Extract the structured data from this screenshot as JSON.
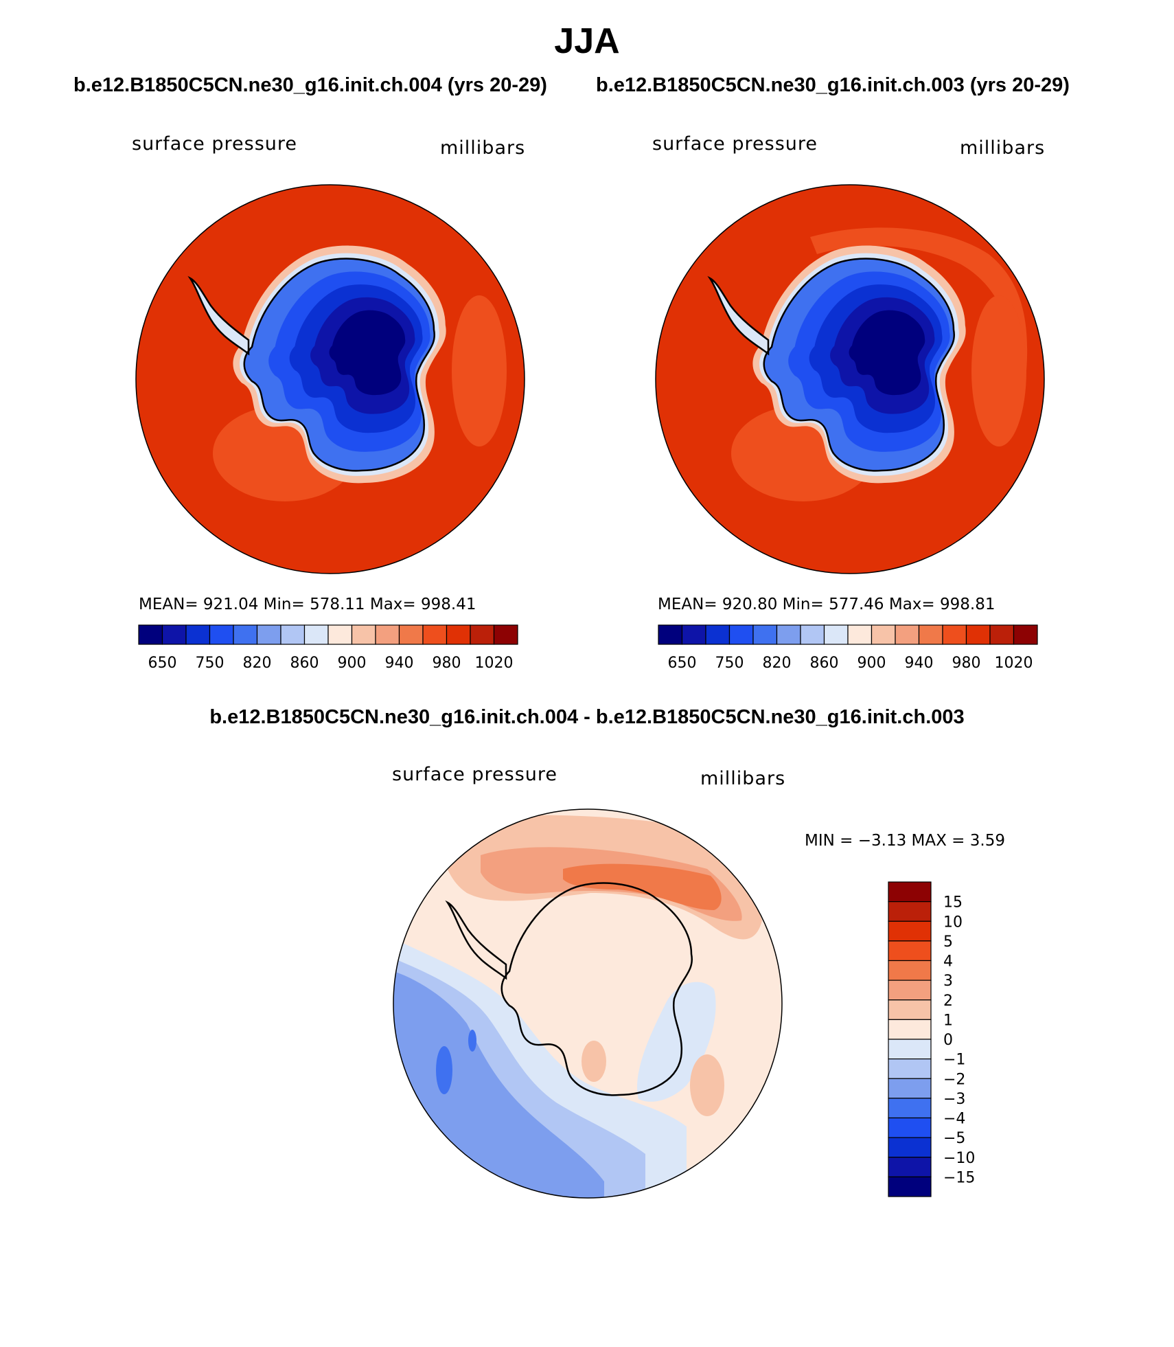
{
  "figure": {
    "title": "JJA",
    "top_left_case": "b.e12.B1850C5CN.ne30_g16.init.ch.004 (yrs 20-29)",
    "top_right_case": "b.e12.B1850C5CN.ne30_g16.init.ch.003 (yrs 20-29)",
    "diff_title": "b.e12.B1850C5CN.ne30_g16.init.ch.004 - b.e12.B1850C5CN.ne30_g16.init.ch.003"
  },
  "panels": [
    {
      "variable": "surface pressure",
      "units": "millibars",
      "stats": "MEAN= 921.04   Min= 578.11   Max= 998.41",
      "mean": 921.04,
      "min": 578.11,
      "max": 998.41
    },
    {
      "variable": "surface pressure",
      "units": "millibars",
      "stats": "MEAN= 920.80   Min= 577.46   Max= 998.81",
      "mean": 920.8,
      "min": 577.46,
      "max": 998.81
    },
    {
      "variable": "surface pressure",
      "units": "millibars",
      "stats": "MIN =   −3.13 MAX =    3.59",
      "min": -3.13,
      "max": 3.59
    }
  ],
  "abs_colorbar": {
    "colors": [
      "#00007d",
      "#0e14a8",
      "#0b31d2",
      "#1f4ff1",
      "#3f71f0",
      "#7d9eee",
      "#b1c6f4",
      "#dbe7f8",
      "#fde9dc",
      "#f7c3a8",
      "#f3a07f",
      "#f07949",
      "#ee4f1d",
      "#e03105",
      "#bb2009",
      "#8d0203"
    ],
    "labels": [
      "650",
      "750",
      "820",
      "860",
      "900",
      "940",
      "980",
      "1020"
    ]
  },
  "diff_colorbar": {
    "colors": [
      "#8d0203",
      "#bb2009",
      "#e03105",
      "#ee4f1d",
      "#f07949",
      "#f3a07f",
      "#f7c3a8",
      "#fde9dc",
      "#dbe7f8",
      "#b1c6f4",
      "#7d9eee",
      "#3f71f0",
      "#1f4ff1",
      "#0b31d2",
      "#0e14a8",
      "#00007d"
    ],
    "labels": [
      "15",
      "10",
      "5",
      "4",
      "3",
      "2",
      "1",
      "0",
      "−1",
      "−2",
      "−3",
      "−4",
      "−5",
      "−10",
      "−15"
    ]
  }
}
